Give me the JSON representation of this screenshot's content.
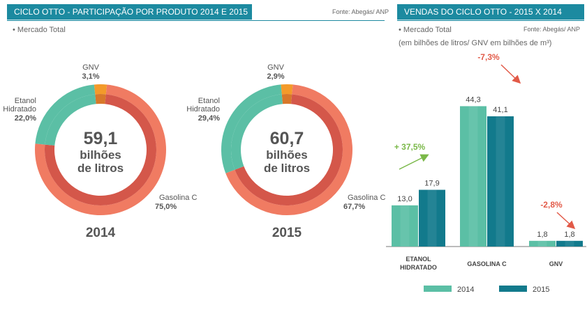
{
  "left_panel": {
    "title": "CICLO OTTO - PARTICIPAÇÃO POR PRODUTO 2014 E 2015",
    "source": "Fonte: Abegás/ ANP",
    "subtitle": "• Mercado Total"
  },
  "right_panel": {
    "title": "VENDAS DO CICLO OTTO - 2015 X 2014",
    "source": "Fonte: Abegás/ ANP",
    "subtitle": "• Mercado Total",
    "subtitle2": "(em bilhões de litros/ GNV em bilhões de  m³)"
  },
  "colors": {
    "header": "#1c8aa0",
    "etanol": "#5bbfa5",
    "gasolina": "#f07b62",
    "gasolina_inner": "#d4574a",
    "gnv": "#f39a2a",
    "gnv_inner": "#d8782a",
    "bar_2014": "#5bbfa5",
    "bar_2015": "#127a8c",
    "up": "#7ab848",
    "down": "#e25a48"
  },
  "chart_data": [
    {
      "type": "pie",
      "year": "2014",
      "center_value": "59,1",
      "center_unit_1": "bilhões",
      "center_unit_2": "de litros",
      "slices": [
        {
          "name": "Gasolina C",
          "value": 75.0,
          "label": "75,0%"
        },
        {
          "name": "Etanol Hidratado",
          "value": 22.0,
          "label": "22,0%"
        },
        {
          "name": "GNV",
          "value": 3.1,
          "label": "3,1%"
        }
      ]
    },
    {
      "type": "pie",
      "year": "2015",
      "center_value": "60,7",
      "center_unit_1": "bilhões",
      "center_unit_2": "de litros",
      "slices": [
        {
          "name": "Gasolina C",
          "value": 67.7,
          "label": "67,7%"
        },
        {
          "name": "Etanol Hidratado",
          "value": 29.4,
          "label": "29,4%"
        },
        {
          "name": "GNV",
          "value": 2.9,
          "label": "2,9%"
        }
      ]
    },
    {
      "type": "bar",
      "categories": [
        "ETANOL HIDRATADO",
        "GASOLINA C",
        "GNV"
      ],
      "series": [
        {
          "name": "2014",
          "values": [
            13.0,
            44.3,
            1.8
          ],
          "labels": [
            "13,0",
            "44,3",
            "1,8"
          ]
        },
        {
          "name": "2015",
          "values": [
            17.9,
            41.1,
            1.8
          ],
          "labels": [
            "17,9",
            "41,1",
            "1,8"
          ]
        }
      ],
      "changes": [
        "+ 37,5%",
        "-7,3%",
        "-2,8%"
      ],
      "change_direction": [
        "up",
        "down",
        "down"
      ],
      "ylim": [
        0,
        50
      ],
      "legend_position": "bottom"
    }
  ]
}
